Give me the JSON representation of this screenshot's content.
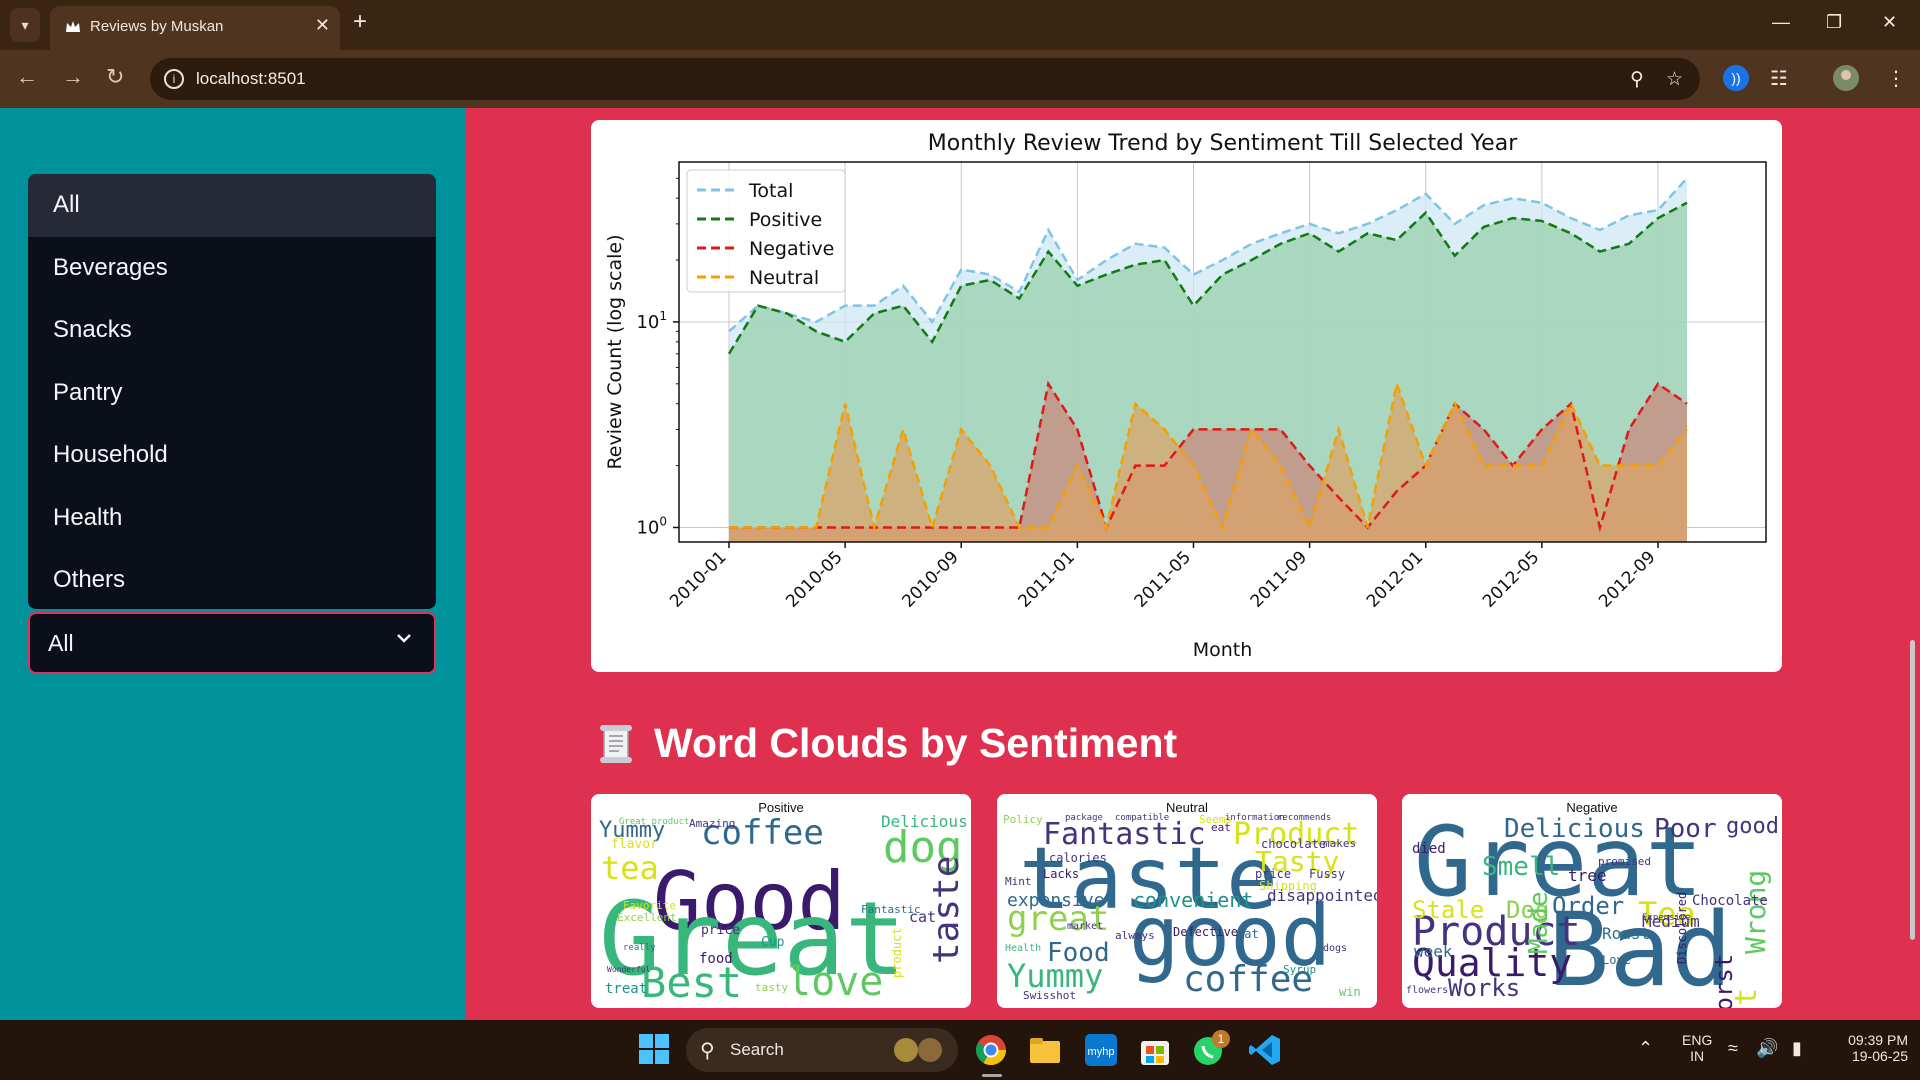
{
  "browser": {
    "tab_title": "Reviews by Muskan",
    "url": "localhost:8501"
  },
  "sidebar": {
    "options": [
      "All",
      "Beverages",
      "Snacks",
      "Pantry",
      "Household",
      "Health",
      "Others"
    ],
    "selected": "All"
  },
  "section": {
    "wordclouds_title": "Word Clouds by Sentiment"
  },
  "wordclouds": {
    "positive": {
      "title": "Positive",
      "words": [
        "Good",
        "Great",
        "coffee",
        "dog",
        "tea",
        "Best",
        "love",
        "taste",
        "Yummy",
        "Delicious",
        "Amazing",
        "flavor",
        "Excellent",
        "Favorite",
        "price",
        "Cup",
        "food",
        "treat",
        "tasty",
        "cat",
        "Fantastic",
        "Great product",
        "product",
        "really",
        "Wonderful"
      ]
    },
    "neutral": {
      "title": "Neutral",
      "words": [
        "taste",
        "good",
        "coffee",
        "Fantastic",
        "Product",
        "Tasty",
        "great",
        "Food",
        "Yummy",
        "expensive",
        "convenient",
        "disappointed",
        "calories",
        "Lacks",
        "Cat",
        "price",
        "Fussy",
        "chocolate",
        "market",
        "Shipping",
        "Syrup",
        "Swisshot",
        "eat",
        "Seems",
        "Policy",
        "package",
        "compatible",
        "information",
        "recommends",
        "makes",
        "Defective",
        "always",
        "Mint",
        "Health",
        "win",
        "dogs"
      ]
    },
    "negative": {
      "title": "Negative",
      "words": [
        "Great",
        "Bad",
        "Product",
        "Quality",
        "Delicious",
        "Poor",
        "good",
        "Works",
        "Stale",
        "Dog",
        "Order",
        "Tea",
        "Smell",
        "Made",
        "Wrong",
        "Worst",
        "Cat",
        "Roast",
        "Medium",
        "week",
        "died",
        "tree",
        "promised",
        "Love",
        "Chocolate",
        "Discolored",
        "flowers",
        "Expensive"
      ]
    }
  },
  "taskbar": {
    "search_label": "Search",
    "language": "ENG",
    "region": "IN",
    "time": "09:39 PM",
    "date": "19-06-25",
    "whatsapp_badge": "1"
  },
  "chart_data": {
    "type": "area",
    "title": "Monthly Review Trend by Sentiment Till Selected Year",
    "xlabel": "Month",
    "ylabel": "Review Count (log scale)",
    "y_scale": "log",
    "ylim": [
      0.85,
      60
    ],
    "y_ticks": [
      "10^0",
      "10^1"
    ],
    "x_tick_labels": [
      "2010-01",
      "2010-05",
      "2010-09",
      "2011-01",
      "2011-05",
      "2011-09",
      "2012-01",
      "2012-05",
      "2012-09"
    ],
    "x_tick_index": [
      0,
      4,
      8,
      12,
      16,
      20,
      24,
      28,
      32
    ],
    "x_count": 34,
    "legend_position": "top-left",
    "grid": true,
    "series": [
      {
        "name": "Total",
        "color": "#7fc4e3",
        "fill": "#cfe8f4",
        "values": [
          9,
          12,
          11,
          10,
          12,
          12,
          15,
          10,
          18,
          17,
          14,
          28,
          16,
          20,
          24,
          23,
          17,
          20,
          24,
          27,
          30,
          27,
          30,
          35,
          42,
          30,
          37,
          40,
          38,
          32,
          28,
          33,
          35,
          50
        ]
      },
      {
        "name": "Positive",
        "color": "#117a11",
        "fill": "#98cfae",
        "values": [
          7,
          12,
          11,
          9,
          8,
          11,
          12,
          8,
          15,
          16,
          13,
          22,
          15,
          17,
          19,
          20,
          12,
          17,
          20,
          24,
          27,
          22,
          27,
          25,
          34,
          21,
          29,
          32,
          31,
          27,
          22,
          24,
          32,
          38
        ]
      },
      {
        "name": "Negative",
        "color": "#e01818",
        "fill": "#c98a7e",
        "values": [
          1,
          1,
          1,
          1,
          1,
          1,
          1,
          1,
          1,
          1,
          1,
          5,
          3,
          1,
          2,
          2,
          3,
          3,
          3,
          3,
          2,
          1.4,
          1,
          1.5,
          2,
          4,
          3,
          2,
          3,
          4,
          1,
          3,
          5,
          4
        ]
      },
      {
        "name": "Neutral",
        "color": "#f5a000",
        "fill": "#d9a468",
        "values": [
          1,
          1,
          1,
          1,
          4,
          1,
          3,
          1,
          3,
          2,
          1,
          1,
          2,
          1,
          4,
          3,
          2,
          1,
          3,
          2,
          1,
          3,
          1,
          5,
          2,
          4,
          2,
          2,
          2,
          4,
          2,
          2,
          2,
          3
        ]
      }
    ]
  }
}
